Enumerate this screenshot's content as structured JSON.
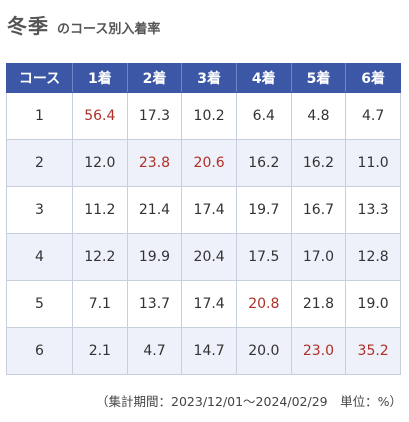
{
  "title": {
    "main": "冬季",
    "sub": "のコース別入着率"
  },
  "table": {
    "headers": [
      "コース",
      "1着",
      "2着",
      "3着",
      "4着",
      "5着",
      "6着"
    ],
    "rows": [
      {
        "course": "1",
        "values": [
          "56.4",
          "17.3",
          "10.2",
          "6.4",
          "4.8",
          "4.7"
        ],
        "highlight": [
          0
        ]
      },
      {
        "course": "2",
        "values": [
          "12.0",
          "23.8",
          "20.6",
          "16.2",
          "16.2",
          "11.0"
        ],
        "highlight": [
          1,
          2
        ]
      },
      {
        "course": "3",
        "values": [
          "11.2",
          "21.4",
          "17.4",
          "19.7",
          "16.7",
          "13.3"
        ],
        "highlight": []
      },
      {
        "course": "4",
        "values": [
          "12.2",
          "19.9",
          "20.4",
          "17.5",
          "17.0",
          "12.8"
        ],
        "highlight": []
      },
      {
        "course": "5",
        "values": [
          "7.1",
          "13.7",
          "17.4",
          "20.8",
          "21.8",
          "19.0"
        ],
        "highlight": [
          3
        ]
      },
      {
        "course": "6",
        "values": [
          "2.1",
          "4.7",
          "14.7",
          "20.0",
          "23.0",
          "35.2"
        ],
        "highlight": [
          4,
          5
        ]
      }
    ]
  },
  "footnote": "（集計期間：2023/12/01～2024/02/29　単位：%）",
  "colors": {
    "header_bg": "#3b57a6",
    "highlight_text": "#b03028",
    "alt_row_bg": "#eef1f9"
  }
}
